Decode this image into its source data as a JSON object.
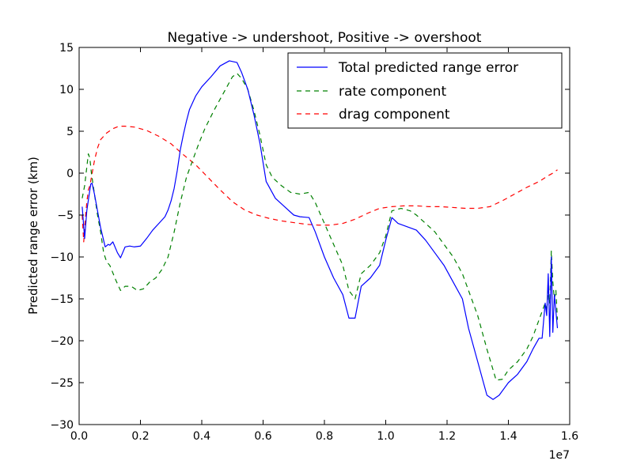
{
  "chart_data": {
    "type": "line",
    "title": "Negative -> undershoot, Positive -> overshoot",
    "xlabel": "",
    "ylabel": "Predicted range error (km)",
    "x_multiplier_label": "1e7",
    "xlim": [
      0,
      1.6
    ],
    "ylim": [
      -30,
      15
    ],
    "x_ticks": [
      0.0,
      0.2,
      0.4,
      0.6,
      0.8,
      1.0,
      1.2,
      1.4,
      1.6
    ],
    "x_tick_labels": [
      "0.0",
      "0.2",
      "0.4",
      "0.6",
      "0.8",
      "1.0",
      "1.2",
      "1.4",
      "1.6"
    ],
    "y_ticks": [
      -30,
      -25,
      -20,
      -15,
      -10,
      -5,
      0,
      5,
      10,
      15
    ],
    "y_tick_labels": [
      "−30",
      "−25",
      "−20",
      "−15",
      "−10",
      "−5",
      "0",
      "5",
      "10",
      "15"
    ],
    "grid": false,
    "legend_position": "top-right",
    "series": [
      {
        "name": "Total predicted range error",
        "color": "#0000ff",
        "style": "solid",
        "points": [
          [
            0.01,
            -4.0
          ],
          [
            0.018,
            -7.8
          ],
          [
            0.025,
            -4.5
          ],
          [
            0.035,
            -2.0
          ],
          [
            0.038,
            -1.3
          ],
          [
            0.042,
            -1.2
          ],
          [
            0.05,
            -2.5
          ],
          [
            0.06,
            -4.5
          ],
          [
            0.07,
            -6.5
          ],
          [
            0.085,
            -8.8
          ],
          [
            0.095,
            -8.5
          ],
          [
            0.1,
            -8.6
          ],
          [
            0.11,
            -8.2
          ],
          [
            0.125,
            -9.5
          ],
          [
            0.135,
            -10.1
          ],
          [
            0.15,
            -8.8
          ],
          [
            0.165,
            -8.7
          ],
          [
            0.18,
            -8.8
          ],
          [
            0.2,
            -8.7
          ],
          [
            0.22,
            -7.8
          ],
          [
            0.24,
            -6.8
          ],
          [
            0.26,
            -6.0
          ],
          [
            0.28,
            -5.2
          ],
          [
            0.29,
            -4.4
          ],
          [
            0.3,
            -3.3
          ],
          [
            0.31,
            -1.8
          ],
          [
            0.32,
            0.3
          ],
          [
            0.33,
            2.8
          ],
          [
            0.34,
            4.6
          ],
          [
            0.35,
            6.2
          ],
          [
            0.36,
            7.6
          ],
          [
            0.38,
            9.2
          ],
          [
            0.4,
            10.3
          ],
          [
            0.43,
            11.5
          ],
          [
            0.46,
            12.8
          ],
          [
            0.49,
            13.4
          ],
          [
            0.515,
            13.2
          ],
          [
            0.53,
            12.0
          ],
          [
            0.55,
            10.0
          ],
          [
            0.57,
            7.0
          ],
          [
            0.59,
            3.5
          ],
          [
            0.61,
            -1.0
          ],
          [
            0.64,
            -3.0
          ],
          [
            0.67,
            -4.0
          ],
          [
            0.7,
            -5.0
          ],
          [
            0.72,
            -5.2
          ],
          [
            0.75,
            -5.3
          ],
          [
            0.77,
            -7.0
          ],
          [
            0.8,
            -10.0
          ],
          [
            0.83,
            -12.5
          ],
          [
            0.86,
            -14.5
          ],
          [
            0.88,
            -17.3
          ],
          [
            0.9,
            -17.3
          ],
          [
            0.92,
            -13.5
          ],
          [
            0.95,
            -12.5
          ],
          [
            0.98,
            -11.0
          ],
          [
            1.0,
            -8.0
          ],
          [
            1.02,
            -5.3
          ],
          [
            1.04,
            -6.0
          ],
          [
            1.07,
            -6.4
          ],
          [
            1.1,
            -6.8
          ],
          [
            1.13,
            -8.0
          ],
          [
            1.16,
            -9.5
          ],
          [
            1.19,
            -11.0
          ],
          [
            1.22,
            -13.0
          ],
          [
            1.25,
            -15.0
          ],
          [
            1.27,
            -18.5
          ],
          [
            1.3,
            -22.5
          ],
          [
            1.33,
            -26.5
          ],
          [
            1.35,
            -27.0
          ],
          [
            1.37,
            -26.5
          ],
          [
            1.4,
            -25.0
          ],
          [
            1.43,
            -24.0
          ],
          [
            1.46,
            -22.5
          ],
          [
            1.48,
            -21.0
          ],
          [
            1.5,
            -19.7
          ],
          [
            1.51,
            -19.7
          ],
          [
            1.52,
            -15.5
          ],
          [
            1.525,
            -17.0
          ],
          [
            1.53,
            -12.0
          ],
          [
            1.535,
            -19.5
          ],
          [
            1.54,
            -10.0
          ],
          [
            1.545,
            -19.0
          ],
          [
            1.55,
            -14.5
          ],
          [
            1.555,
            -16.5
          ],
          [
            1.56,
            -18.5
          ]
        ]
      },
      {
        "name": "rate component",
        "color": "#008000",
        "style": "dashed",
        "points": [
          [
            0.01,
            -3.0
          ],
          [
            0.018,
            -1.5
          ],
          [
            0.025,
            0.7
          ],
          [
            0.03,
            2.3
          ],
          [
            0.035,
            1.8
          ],
          [
            0.04,
            0.0
          ],
          [
            0.05,
            -2.5
          ],
          [
            0.06,
            -5.0
          ],
          [
            0.07,
            -7.0
          ],
          [
            0.08,
            -9.5
          ],
          [
            0.09,
            -10.6
          ],
          [
            0.1,
            -11.0
          ],
          [
            0.12,
            -12.8
          ],
          [
            0.135,
            -14.0
          ],
          [
            0.15,
            -13.5
          ],
          [
            0.17,
            -13.5
          ],
          [
            0.19,
            -14.0
          ],
          [
            0.21,
            -13.8
          ],
          [
            0.23,
            -13.0
          ],
          [
            0.25,
            -12.5
          ],
          [
            0.27,
            -11.5
          ],
          [
            0.29,
            -10.0
          ],
          [
            0.31,
            -7.0
          ],
          [
            0.33,
            -3.5
          ],
          [
            0.35,
            -0.5
          ],
          [
            0.37,
            1.5
          ],
          [
            0.39,
            3.5
          ],
          [
            0.41,
            5.3
          ],
          [
            0.44,
            7.5
          ],
          [
            0.47,
            9.5
          ],
          [
            0.5,
            11.5
          ],
          [
            0.515,
            11.9
          ],
          [
            0.53,
            11.3
          ],
          [
            0.55,
            10.0
          ],
          [
            0.57,
            7.5
          ],
          [
            0.59,
            4.5
          ],
          [
            0.61,
            1.0
          ],
          [
            0.63,
            -0.5
          ],
          [
            0.66,
            -1.5
          ],
          [
            0.69,
            -2.3
          ],
          [
            0.72,
            -2.5
          ],
          [
            0.75,
            -2.3
          ],
          [
            0.77,
            -3.5
          ],
          [
            0.8,
            -6.0
          ],
          [
            0.83,
            -8.5
          ],
          [
            0.86,
            -11.0
          ],
          [
            0.88,
            -14.0
          ],
          [
            0.9,
            -15.0
          ],
          [
            0.92,
            -12.0
          ],
          [
            0.95,
            -11.0
          ],
          [
            0.98,
            -9.5
          ],
          [
            1.0,
            -7.5
          ],
          [
            1.02,
            -4.5
          ],
          [
            1.05,
            -4.2
          ],
          [
            1.08,
            -4.5
          ],
          [
            1.1,
            -5.0
          ],
          [
            1.13,
            -6.0
          ],
          [
            1.16,
            -7.0
          ],
          [
            1.19,
            -8.5
          ],
          [
            1.22,
            -10.0
          ],
          [
            1.25,
            -12.0
          ],
          [
            1.27,
            -14.0
          ],
          [
            1.3,
            -17.0
          ],
          [
            1.33,
            -21.0
          ],
          [
            1.36,
            -24.7
          ],
          [
            1.38,
            -24.6
          ],
          [
            1.4,
            -23.5
          ],
          [
            1.43,
            -22.5
          ],
          [
            1.46,
            -21.0
          ],
          [
            1.48,
            -19.5
          ],
          [
            1.5,
            -17.5
          ],
          [
            1.51,
            -16.5
          ],
          [
            1.52,
            -15.5
          ],
          [
            1.525,
            -16.5
          ],
          [
            1.53,
            -14.0
          ],
          [
            1.535,
            -15.5
          ],
          [
            1.54,
            -9.3
          ],
          [
            1.545,
            -13.0
          ],
          [
            1.55,
            -15.0
          ],
          [
            1.555,
            -14.0
          ],
          [
            1.56,
            -17.5
          ]
        ]
      },
      {
        "name": "drag component",
        "color": "#ff0000",
        "style": "dashed",
        "points": [
          [
            0.01,
            -5.0
          ],
          [
            0.015,
            -8.2
          ],
          [
            0.02,
            -5.5
          ],
          [
            0.025,
            -3.5
          ],
          [
            0.03,
            -2.0
          ],
          [
            0.035,
            -1.5
          ],
          [
            0.04,
            -0.5
          ],
          [
            0.05,
            1.5
          ],
          [
            0.06,
            3.0
          ],
          [
            0.07,
            4.0
          ],
          [
            0.09,
            4.8
          ],
          [
            0.11,
            5.3
          ],
          [
            0.13,
            5.6
          ],
          [
            0.15,
            5.6
          ],
          [
            0.18,
            5.5
          ],
          [
            0.22,
            5.1
          ],
          [
            0.26,
            4.4
          ],
          [
            0.3,
            3.5
          ],
          [
            0.34,
            2.2
          ],
          [
            0.38,
            1.0
          ],
          [
            0.42,
            -0.5
          ],
          [
            0.46,
            -2.0
          ],
          [
            0.5,
            -3.4
          ],
          [
            0.54,
            -4.4
          ],
          [
            0.58,
            -5.0
          ],
          [
            0.62,
            -5.4
          ],
          [
            0.66,
            -5.7
          ],
          [
            0.7,
            -5.9
          ],
          [
            0.74,
            -6.1
          ],
          [
            0.78,
            -6.2
          ],
          [
            0.82,
            -6.2
          ],
          [
            0.86,
            -6.0
          ],
          [
            0.9,
            -5.5
          ],
          [
            0.94,
            -4.8
          ],
          [
            0.98,
            -4.2
          ],
          [
            1.02,
            -4.0
          ],
          [
            1.06,
            -3.9
          ],
          [
            1.1,
            -3.9
          ],
          [
            1.14,
            -4.0
          ],
          [
            1.18,
            -4.0
          ],
          [
            1.22,
            -4.1
          ],
          [
            1.26,
            -4.2
          ],
          [
            1.3,
            -4.2
          ],
          [
            1.34,
            -4.0
          ],
          [
            1.38,
            -3.3
          ],
          [
            1.42,
            -2.5
          ],
          [
            1.46,
            -1.7
          ],
          [
            1.5,
            -1.0
          ],
          [
            1.53,
            -0.3
          ],
          [
            1.545,
            0.0
          ],
          [
            1.56,
            0.4
          ]
        ]
      }
    ]
  }
}
